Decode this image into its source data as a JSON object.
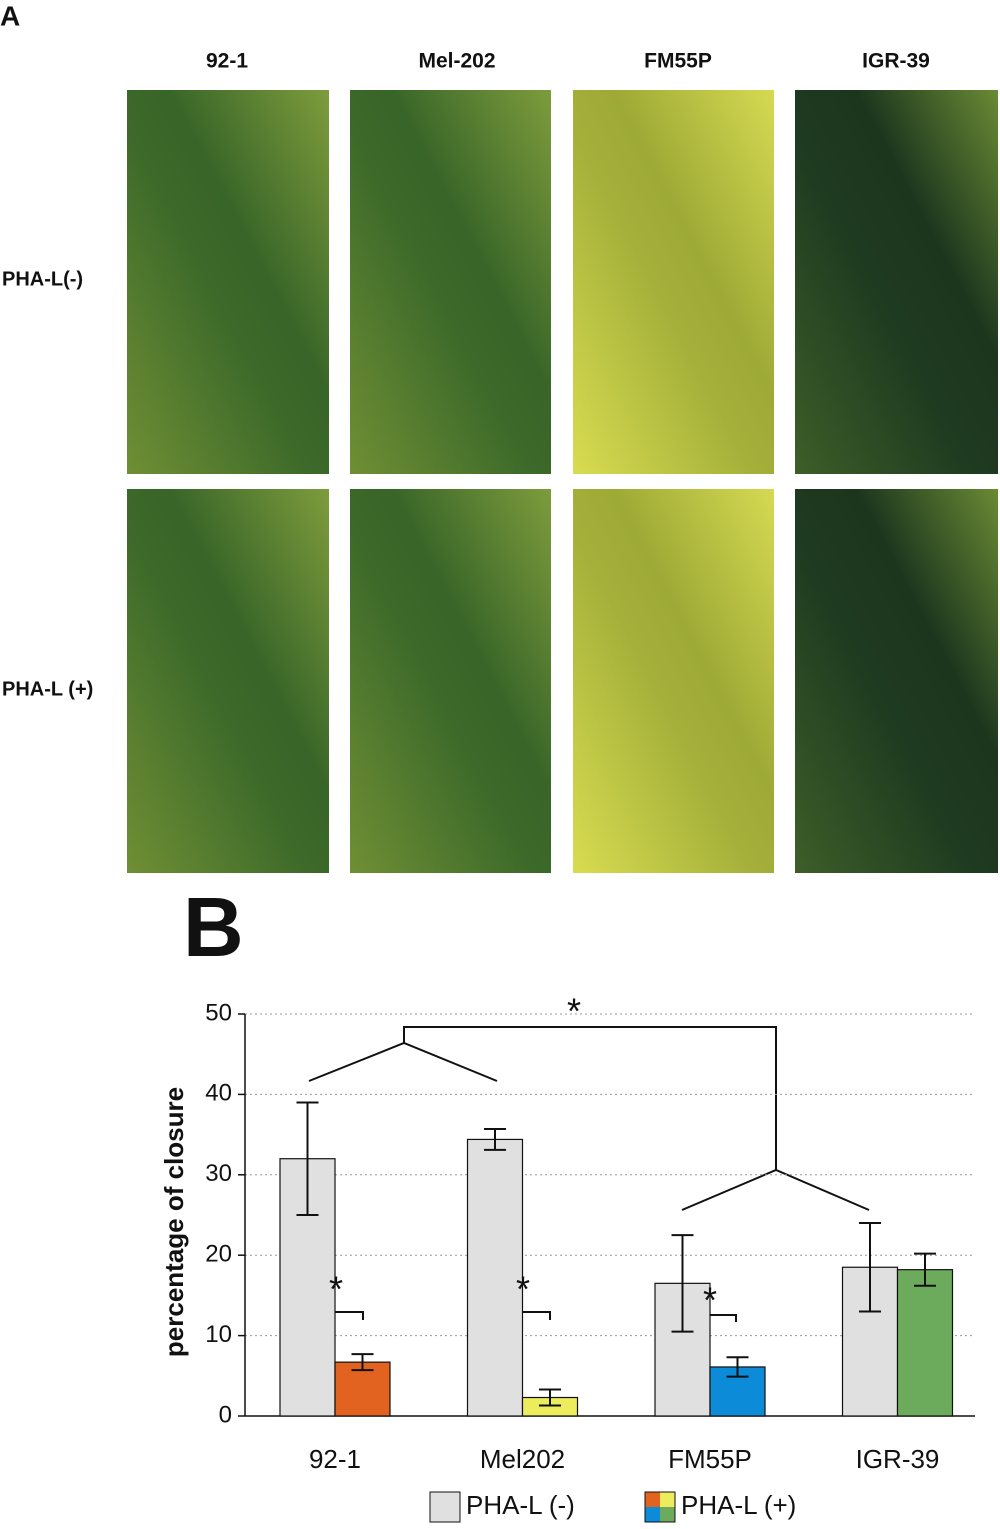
{
  "panel_a": {
    "label": "A",
    "columns": [
      "92-1",
      "Mel-202",
      "FM55P",
      "IGR-39"
    ],
    "rows": [
      "PHA-L(-)",
      "PHA-L (+)"
    ]
  },
  "chart_data": {
    "type": "bar",
    "panel_label": "B",
    "y_label": "percentage of closure",
    "categories": [
      "92-1",
      "Mel202",
      "FM55P",
      "IGR-39"
    ],
    "series": [
      {
        "name": "PHA-L (-)",
        "color": "#e0e0e0",
        "values": [
          32,
          34.4,
          16.5,
          18.5
        ],
        "errors": [
          7,
          1.3,
          6,
          5.5
        ]
      },
      {
        "name": "PHA-L (+)",
        "colors": [
          "#e2621f",
          "#ecec5c",
          "#0b8bd8",
          "#6cab5c"
        ],
        "values": [
          6.7,
          2.3,
          6.1,
          18.2
        ],
        "errors": [
          1,
          1,
          1.2,
          2
        ]
      }
    ],
    "ylim": [
      0,
      50
    ],
    "yticks": [
      0,
      10,
      20,
      30,
      40,
      50
    ],
    "grid": true,
    "annotations": [
      "*",
      "*",
      "*",
      "*"
    ]
  }
}
